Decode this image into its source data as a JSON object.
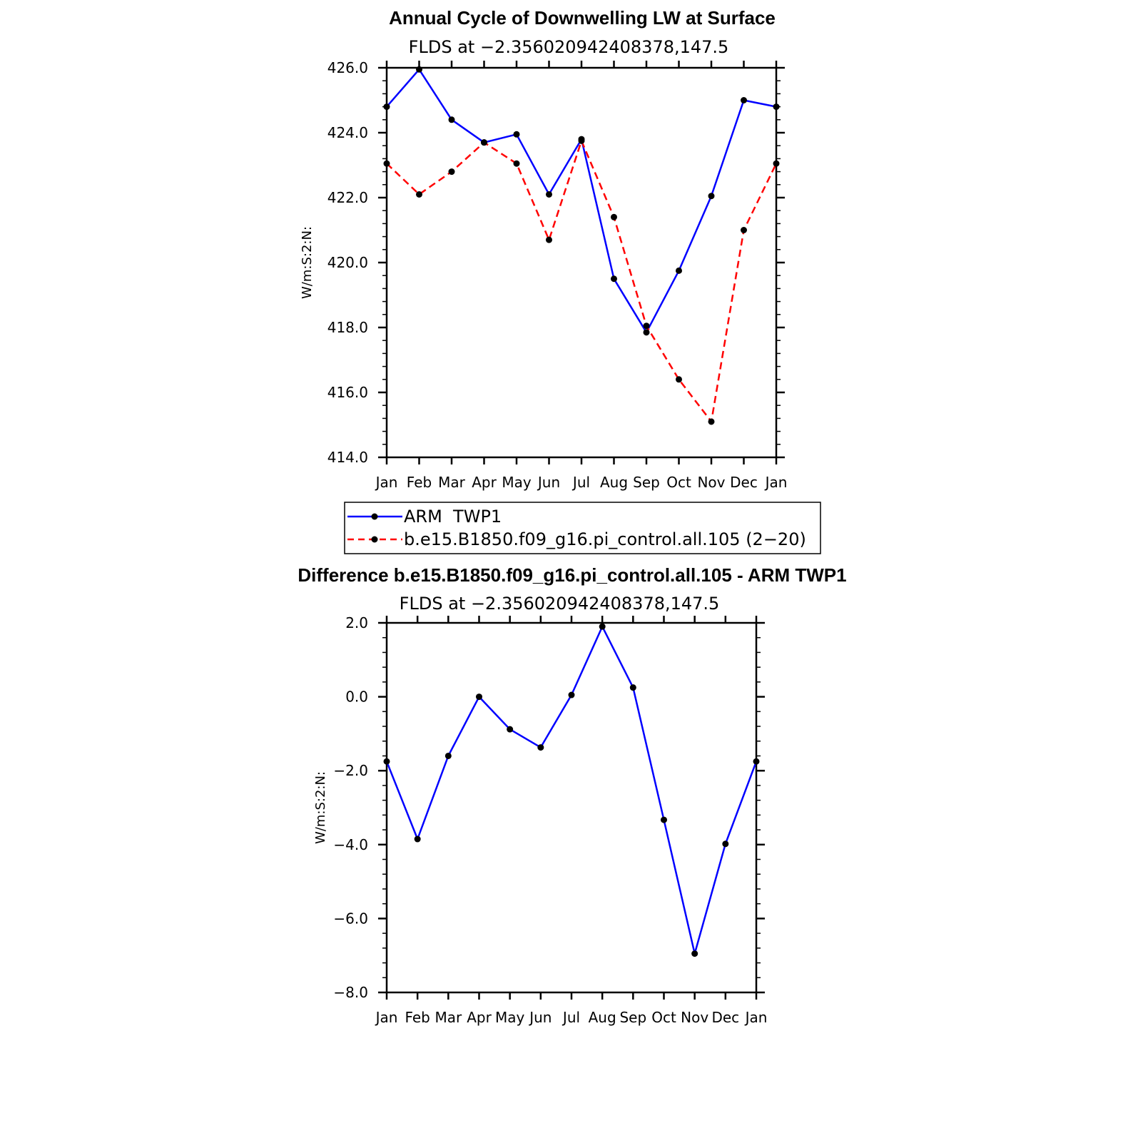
{
  "chart_data": [
    {
      "type": "line",
      "title": "Annual Cycle of Downwelling LW at Surface",
      "subtitle": "FLDS at −2.356020942408378,147.5",
      "ylabel": "W/m:S:2:N:",
      "xlabel": "",
      "categories": [
        "Jan",
        "Feb",
        "Mar",
        "Apr",
        "May",
        "Jun",
        "Jul",
        "Aug",
        "Sep",
        "Oct",
        "Nov",
        "Dec",
        "Jan"
      ],
      "yticks": [
        "426.0",
        "424.0",
        "422.0",
        "420.0",
        "418.0",
        "416.0",
        "414.0"
      ],
      "ylim": [
        414,
        426
      ],
      "series": [
        {
          "name": "ARM  TWP1",
          "color": "#0000ff",
          "dash": "solid",
          "values": [
            424.8,
            425.95,
            424.4,
            423.7,
            423.95,
            422.1,
            423.8,
            419.5,
            417.85,
            419.75,
            422.05,
            425.0,
            424.8
          ]
        },
        {
          "name": "b.e15.B1850.f09_g16.pi_control.all.105 (2−20)",
          "color": "#ff0000",
          "dash": "dashed",
          "values": [
            423.05,
            422.1,
            422.8,
            423.7,
            423.05,
            420.7,
            423.75,
            421.4,
            418.05,
            416.4,
            415.1,
            421.0,
            423.05
          ]
        }
      ],
      "legend": "below"
    },
    {
      "type": "line",
      "title": "Difference b.e15.B1850.f09_g16.pi_control.all.105 - ARM TWP1",
      "subtitle": "FLDS at −2.356020942408378,147.5",
      "ylabel": "W/m:S:2:N:",
      "xlabel": "",
      "categories": [
        "Jan",
        "Feb",
        "Mar",
        "Apr",
        "May",
        "Jun",
        "Jul",
        "Aug",
        "Sep",
        "Oct",
        "Nov",
        "Dec",
        "Jan"
      ],
      "yticks": [
        "2.0",
        "0.0",
        "−2.0",
        "−4.0",
        "−6.0",
        "−8.0"
      ],
      "ylim": [
        -8,
        2
      ],
      "series": [
        {
          "name": "Difference",
          "color": "#0000ff",
          "dash": "solid",
          "values": [
            -1.75,
            -3.85,
            -1.6,
            0.0,
            -0.88,
            -1.37,
            0.05,
            1.9,
            0.25,
            -3.33,
            -6.95,
            -3.98,
            -1.75
          ]
        }
      ]
    }
  ]
}
